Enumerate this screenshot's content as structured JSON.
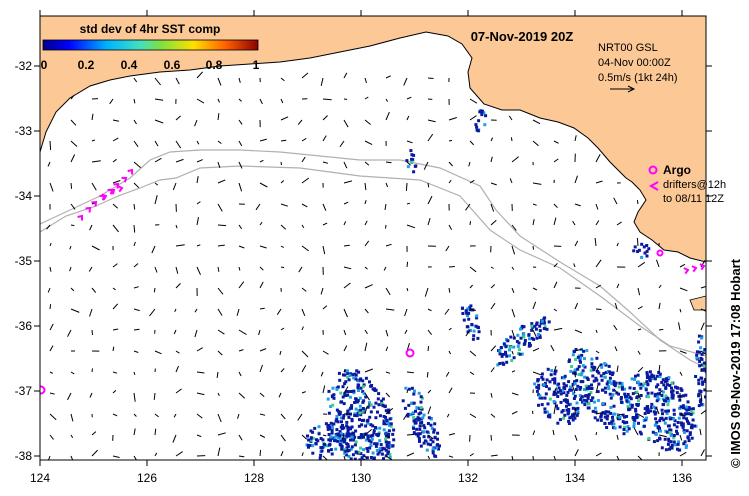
{
  "title": "07-Nov-2019 20Z",
  "colorbar": {
    "label": "std dev of 4hr SST comp",
    "ticks": [
      "0",
      "0.2",
      "0.4",
      "0.6",
      "0.8",
      "1"
    ]
  },
  "current_info": {
    "line1": "NRT00 GSL",
    "line2": "04-Nov 00:00Z",
    "line3": "0.5m/s (1kt 24h)"
  },
  "argo_label": "Argo",
  "drifter_label_1": "drifters@12h",
  "drifter_label_2": "to 08/11 12Z",
  "credit": "© IMOS 09-Nov-2019 17:08 Hobart",
  "axes": {
    "x_ticks": [
      "124",
      "126",
      "128",
      "130",
      "132",
      "134",
      "136"
    ],
    "y_ticks": [
      "-32",
      "-33",
      "-34",
      "-35",
      "-36",
      "-37",
      "-38"
    ]
  },
  "colors": {
    "land": "#fbc896",
    "coast": "#000000",
    "isobath": "#b0b0b0",
    "argo": "#ff00ff",
    "drifter": "#ff00ff",
    "sst_low": "#0a1aa0",
    "sst_mid": "#1ea0e6"
  }
}
